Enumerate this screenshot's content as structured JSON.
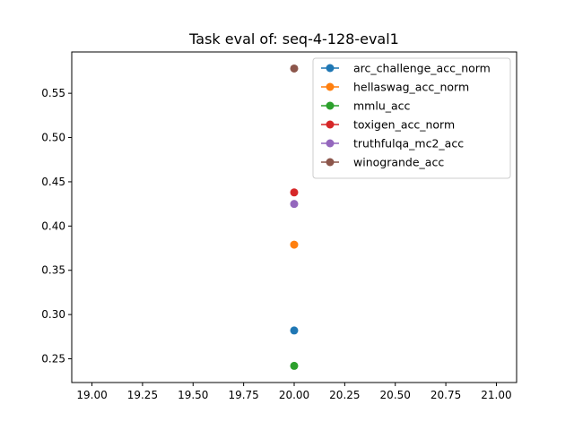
{
  "chart_data": {
    "type": "scatter",
    "title": "Task eval of: seq-4-128-eval1",
    "xlabel": "",
    "ylabel": "",
    "xlim": [
      18.9,
      21.1
    ],
    "ylim": [
      0.2232,
      0.5967
    ],
    "x_ticks": [
      19.0,
      19.25,
      19.5,
      19.75,
      20.0,
      20.25,
      20.5,
      20.75,
      21.0
    ],
    "x_tick_labels": [
      "19.00",
      "19.25",
      "19.50",
      "19.75",
      "20.00",
      "20.25",
      "20.50",
      "20.75",
      "21.00"
    ],
    "y_ticks": [
      0.25,
      0.3,
      0.35,
      0.4,
      0.45,
      0.5,
      0.55
    ],
    "y_tick_labels": [
      "0.25",
      "0.30",
      "0.35",
      "0.40",
      "0.45",
      "0.50",
      "0.55"
    ],
    "grid": false,
    "legend_position": "top-right",
    "series": [
      {
        "name": "arc_challenge_acc_norm",
        "color": "#1f77b4",
        "x": [
          20
        ],
        "y": [
          0.282
        ]
      },
      {
        "name": "hellaswag_acc_norm",
        "color": "#ff7f0e",
        "x": [
          20
        ],
        "y": [
          0.379
        ]
      },
      {
        "name": "mmlu_acc",
        "color": "#2ca02c",
        "x": [
          20
        ],
        "y": [
          0.242
        ]
      },
      {
        "name": "toxigen_acc_norm",
        "color": "#d62728",
        "x": [
          20
        ],
        "y": [
          0.438
        ]
      },
      {
        "name": "truthfulqa_mc2_acc",
        "color": "#9467bd",
        "x": [
          20
        ],
        "y": [
          0.425
        ]
      },
      {
        "name": "winogrande_acc",
        "color": "#8c564b",
        "x": [
          20
        ],
        "y": [
          0.578
        ]
      }
    ]
  }
}
